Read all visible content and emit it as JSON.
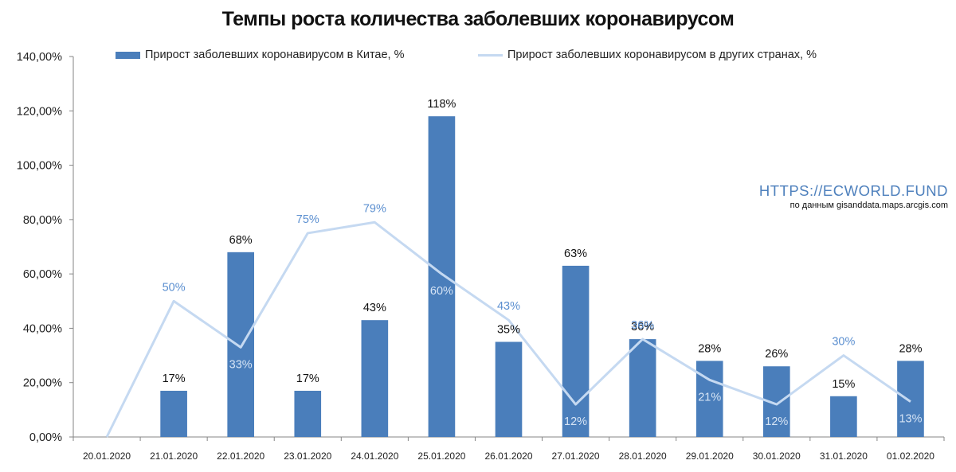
{
  "title": "Темпы роста количества заболевших коронавирусом",
  "watermark": {
    "url": "HTTPS://ECWORLD.FUND",
    "source": "по данным gisanddata.maps.arcgis.com"
  },
  "colors": {
    "bar": "#4a7ebb",
    "line": "#c5d9f1",
    "line_label": "#5b8fd0",
    "axis": "#868686"
  },
  "chart_data": {
    "type": "bar",
    "title": "Темпы роста количества заболевших коронавирусом",
    "categories": [
      "20.01.2020",
      "21.01.2020",
      "22.01.2020",
      "23.01.2020",
      "24.01.2020",
      "25.01.2020",
      "26.01.2020",
      "27.01.2020",
      "28.01.2020",
      "29.01.2020",
      "30.01.2020",
      "31.01.2020",
      "01.02.2020"
    ],
    "y_ticks": [
      "0,00%",
      "20,00%",
      "40,00%",
      "60,00%",
      "80,00%",
      "100,00%",
      "120,00%",
      "140,00%"
    ],
    "ylim": [
      0,
      140
    ],
    "grid": false,
    "legend_position": "top",
    "series": [
      {
        "name": "Прирост заболевших коронавирусом в Китае, %",
        "kind": "bar",
        "values": [
          null,
          17,
          68,
          17,
          43,
          118,
          35,
          63,
          36,
          28,
          26,
          15,
          28
        ],
        "labels": [
          "",
          "17%",
          "68%",
          "17%",
          "43%",
          "118%",
          "35%",
          "63%",
          "36%",
          "28%",
          "26%",
          "15%",
          "28%"
        ]
      },
      {
        "name": "Прирост заболевших коронавирусом в других странах, %",
        "kind": "line",
        "values": [
          0,
          50,
          33,
          75,
          79,
          60,
          43,
          12,
          36,
          21,
          12,
          30,
          13
        ],
        "labels": [
          "",
          "50%",
          "33%",
          "75%",
          "79%",
          "60%",
          "43%",
          "12%",
          "36%",
          "21%",
          "12%",
          "30%",
          "13%"
        ]
      }
    ]
  }
}
